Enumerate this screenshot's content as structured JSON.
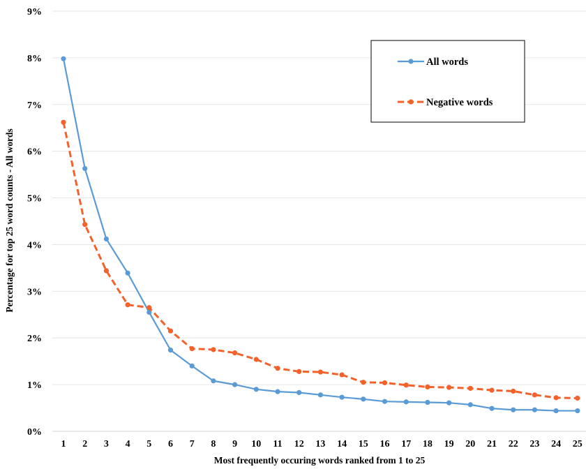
{
  "chart_data": {
    "type": "line",
    "title": "",
    "xlabel": "Most frequently occuring words ranked from 1 to 25",
    "ylabel": "Percentage for top 25 word counts - All words",
    "x": [
      1,
      2,
      3,
      4,
      5,
      6,
      7,
      8,
      9,
      10,
      11,
      12,
      13,
      14,
      15,
      16,
      17,
      18,
      19,
      20,
      21,
      22,
      23,
      24,
      25
    ],
    "y_ticks": [
      "0%",
      "1%",
      "2%",
      "3%",
      "4%",
      "5%",
      "6%",
      "7%",
      "8%",
      "9%"
    ],
    "ylim": [
      0,
      9
    ],
    "grid": "horizontal",
    "legend_position": "top-right",
    "series": [
      {
        "name": "All words",
        "color": "#5B9BD5",
        "dash": "solid",
        "values": [
          7.98,
          5.63,
          4.12,
          3.39,
          2.55,
          1.74,
          1.4,
          1.08,
          1.0,
          0.9,
          0.85,
          0.83,
          0.78,
          0.73,
          0.69,
          0.64,
          0.63,
          0.62,
          0.61,
          0.57,
          0.49,
          0.46,
          0.46,
          0.44,
          0.44
        ]
      },
      {
        "name": "Negative words",
        "color": "#F4622B",
        "dash": "dashed",
        "values": [
          6.62,
          4.43,
          3.44,
          2.71,
          2.65,
          2.15,
          1.77,
          1.75,
          1.68,
          1.54,
          1.35,
          1.28,
          1.27,
          1.21,
          1.05,
          1.04,
          0.99,
          0.95,
          0.94,
          0.92,
          0.88,
          0.86,
          0.78,
          0.72,
          0.71
        ]
      }
    ]
  }
}
